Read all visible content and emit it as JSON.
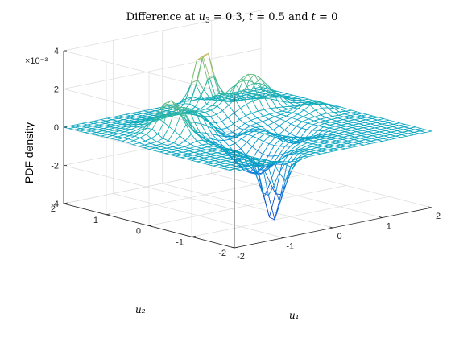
{
  "chart_data": {
    "type": "mesh",
    "title": "Difference at u₃ = 0.3, t = 0.5 and t = 0",
    "title_parts": {
      "pre": "Difference at ",
      "sub": "3",
      "mid": " = 0.3, ",
      "t1": " = 0.5 and ",
      "t2": " = 0"
    },
    "xlabel": "u₁",
    "ylabel": "u₂",
    "zlabel": "PDF density",
    "z_exponent_label": "×10⁻³",
    "xlim": [
      -2,
      2
    ],
    "ylim": [
      -2,
      2
    ],
    "zlim": [
      -0.004,
      0.004
    ],
    "x_ticks": [
      "-2",
      "-1",
      "0",
      "1",
      "2"
    ],
    "y_ticks": [
      "-2",
      "-1",
      "0",
      "1",
      "2"
    ],
    "z_ticks": [
      "-4",
      "-2",
      "0",
      "2",
      "4"
    ],
    "grid": true,
    "colormap": "parula",
    "grid_points": 33,
    "surface_features": [
      {
        "description": "baseline plateau",
        "value_e3": 0.0
      },
      {
        "description": "peak near u1=0.5,u2=1.5",
        "u1": 0.5,
        "u2": 1.5,
        "value_e3": 3.1
      },
      {
        "description": "peak near u1=-1.2,u2=0.2",
        "u1": -1.2,
        "u2": 0.2,
        "value_e3": 1.6
      },
      {
        "description": "trough near u1=-0.8,u2=-1.5",
        "u1": -0.8,
        "u2": -1.5,
        "value_e3": -3.5
      },
      {
        "description": "dip near u1=0,u2=0.5",
        "u1": 0.0,
        "u2": 0.5,
        "value_e3": -0.8
      }
    ]
  }
}
